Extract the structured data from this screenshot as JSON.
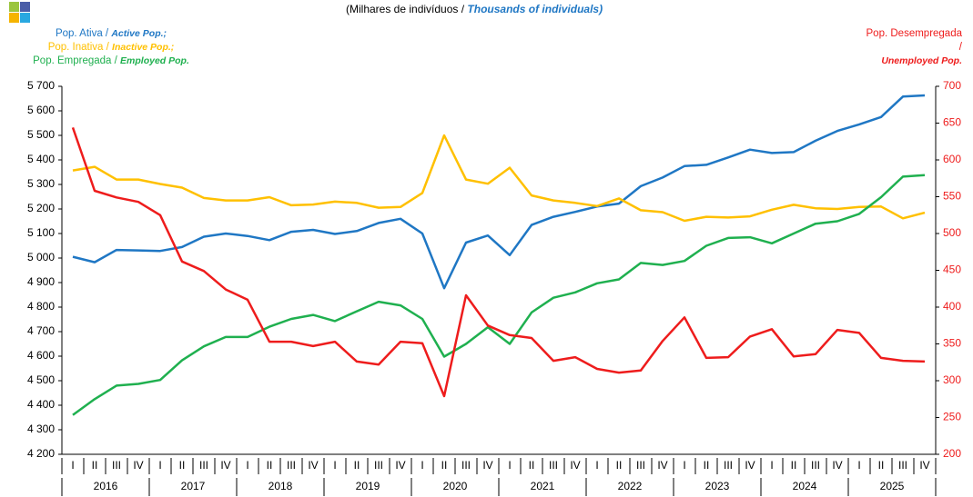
{
  "chart_data": {
    "type": "line",
    "title": "(Milhares de indivíduos /",
    "title_en": "Thousands of individuals)",
    "categories": [
      "I",
      "II",
      "III",
      "IV",
      "I",
      "II",
      "III",
      "IV",
      "I",
      "II",
      "III",
      "IV",
      "I",
      "II",
      "III",
      "IV",
      "I",
      "II",
      "III",
      "IV",
      "I",
      "II",
      "III",
      "IV",
      "I",
      "II",
      "III",
      "IV",
      "I",
      "II",
      "III",
      "IV",
      "I",
      "II",
      "III",
      "IV",
      "I",
      "II",
      "III",
      "IV"
    ],
    "category_groups": [
      "2016",
      "2017",
      "2018",
      "2019",
      "2020",
      "2021",
      "2022",
      "2023",
      "2024",
      "2025"
    ],
    "ylim": [
      4200,
      5700
    ],
    "yticks": [
      {
        "value": 4200,
        "label": "4 200"
      },
      {
        "value": 4300,
        "label": "4 300"
      },
      {
        "value": 4400,
        "label": "4 400"
      },
      {
        "value": 4500,
        "label": "4 500"
      },
      {
        "value": 4600,
        "label": "4 600"
      },
      {
        "value": 4700,
        "label": "4 700"
      },
      {
        "value": 4800,
        "label": "4 800"
      },
      {
        "value": 4900,
        "label": "4 900"
      },
      {
        "value": 5000,
        "label": "5 000"
      },
      {
        "value": 5100,
        "label": "5 100"
      },
      {
        "value": 5200,
        "label": "5 200"
      },
      {
        "value": 5300,
        "label": "5 300"
      },
      {
        "value": 5400,
        "label": "5 400"
      },
      {
        "value": 5500,
        "label": "5 500"
      },
      {
        "value": 5600,
        "label": "5 600"
      },
      {
        "value": 5700,
        "label": "5 700"
      }
    ],
    "y2lim": [
      200,
      700
    ],
    "y2ticks": [
      200,
      250,
      300,
      350,
      400,
      450,
      500,
      550,
      600,
      650,
      700
    ],
    "series": [
      {
        "name": "Pop. Ativa /",
        "name_en": "Active Pop.;",
        "color": "#1f77c4",
        "values": [
          5005,
          4983,
          5033,
          5031,
          5029,
          5045,
          5087,
          5100,
          5090,
          5073,
          5107,
          5115,
          5098,
          5110,
          5143,
          5160,
          5100,
          4877,
          5063,
          5092,
          5012,
          5135,
          5168,
          5188,
          5210,
          5222,
          5293,
          5328,
          5375,
          5380,
          5410,
          5442,
          5428,
          5432,
          5478,
          5518,
          5545,
          5575,
          5658,
          5663
        ]
      },
      {
        "name": "Pop. Inativa /",
        "name_en": "Inactive Pop.;",
        "color": "#ffc000",
        "values": [
          5357,
          5372,
          5320,
          5320,
          5302,
          5287,
          5245,
          5235,
          5235,
          5248,
          5215,
          5218,
          5230,
          5225,
          5205,
          5208,
          5265,
          5500,
          5320,
          5303,
          5368,
          5255,
          5235,
          5225,
          5212,
          5243,
          5195,
          5187,
          5152,
          5168,
          5165,
          5170,
          5197,
          5217,
          5203,
          5200,
          5208,
          5210,
          5162,
          5185
        ]
      },
      {
        "name": "Pop. Empregada /",
        "name_en": "Employed Pop.",
        "color": "#1fb04f",
        "values": [
          4360,
          4425,
          4480,
          4487,
          4503,
          4583,
          4640,
          4678,
          4678,
          4720,
          4752,
          4768,
          4743,
          4783,
          4822,
          4807,
          4752,
          4598,
          4650,
          4718,
          4650,
          4778,
          4838,
          4860,
          4897,
          4913,
          4980,
          4972,
          4988,
          5050,
          5082,
          5085,
          5060,
          5100,
          5140,
          5150,
          5180,
          5248,
          5332,
          5338
        ]
      },
      {
        "name": "Pop. Desempregada /",
        "name_en": "Unemployed Pop.",
        "color": "#ee1c1c",
        "axis": "y2",
        "values": [
          644,
          558,
          549,
          543,
          525,
          462,
          449,
          424,
          410,
          353,
          353,
          347,
          353,
          326,
          322,
          353,
          351,
          279,
          416,
          375,
          362,
          358,
          327,
          332,
          316,
          311,
          314,
          354,
          386,
          331,
          332,
          360,
          370,
          333,
          336,
          369,
          365,
          331,
          327,
          326
        ]
      }
    ]
  }
}
